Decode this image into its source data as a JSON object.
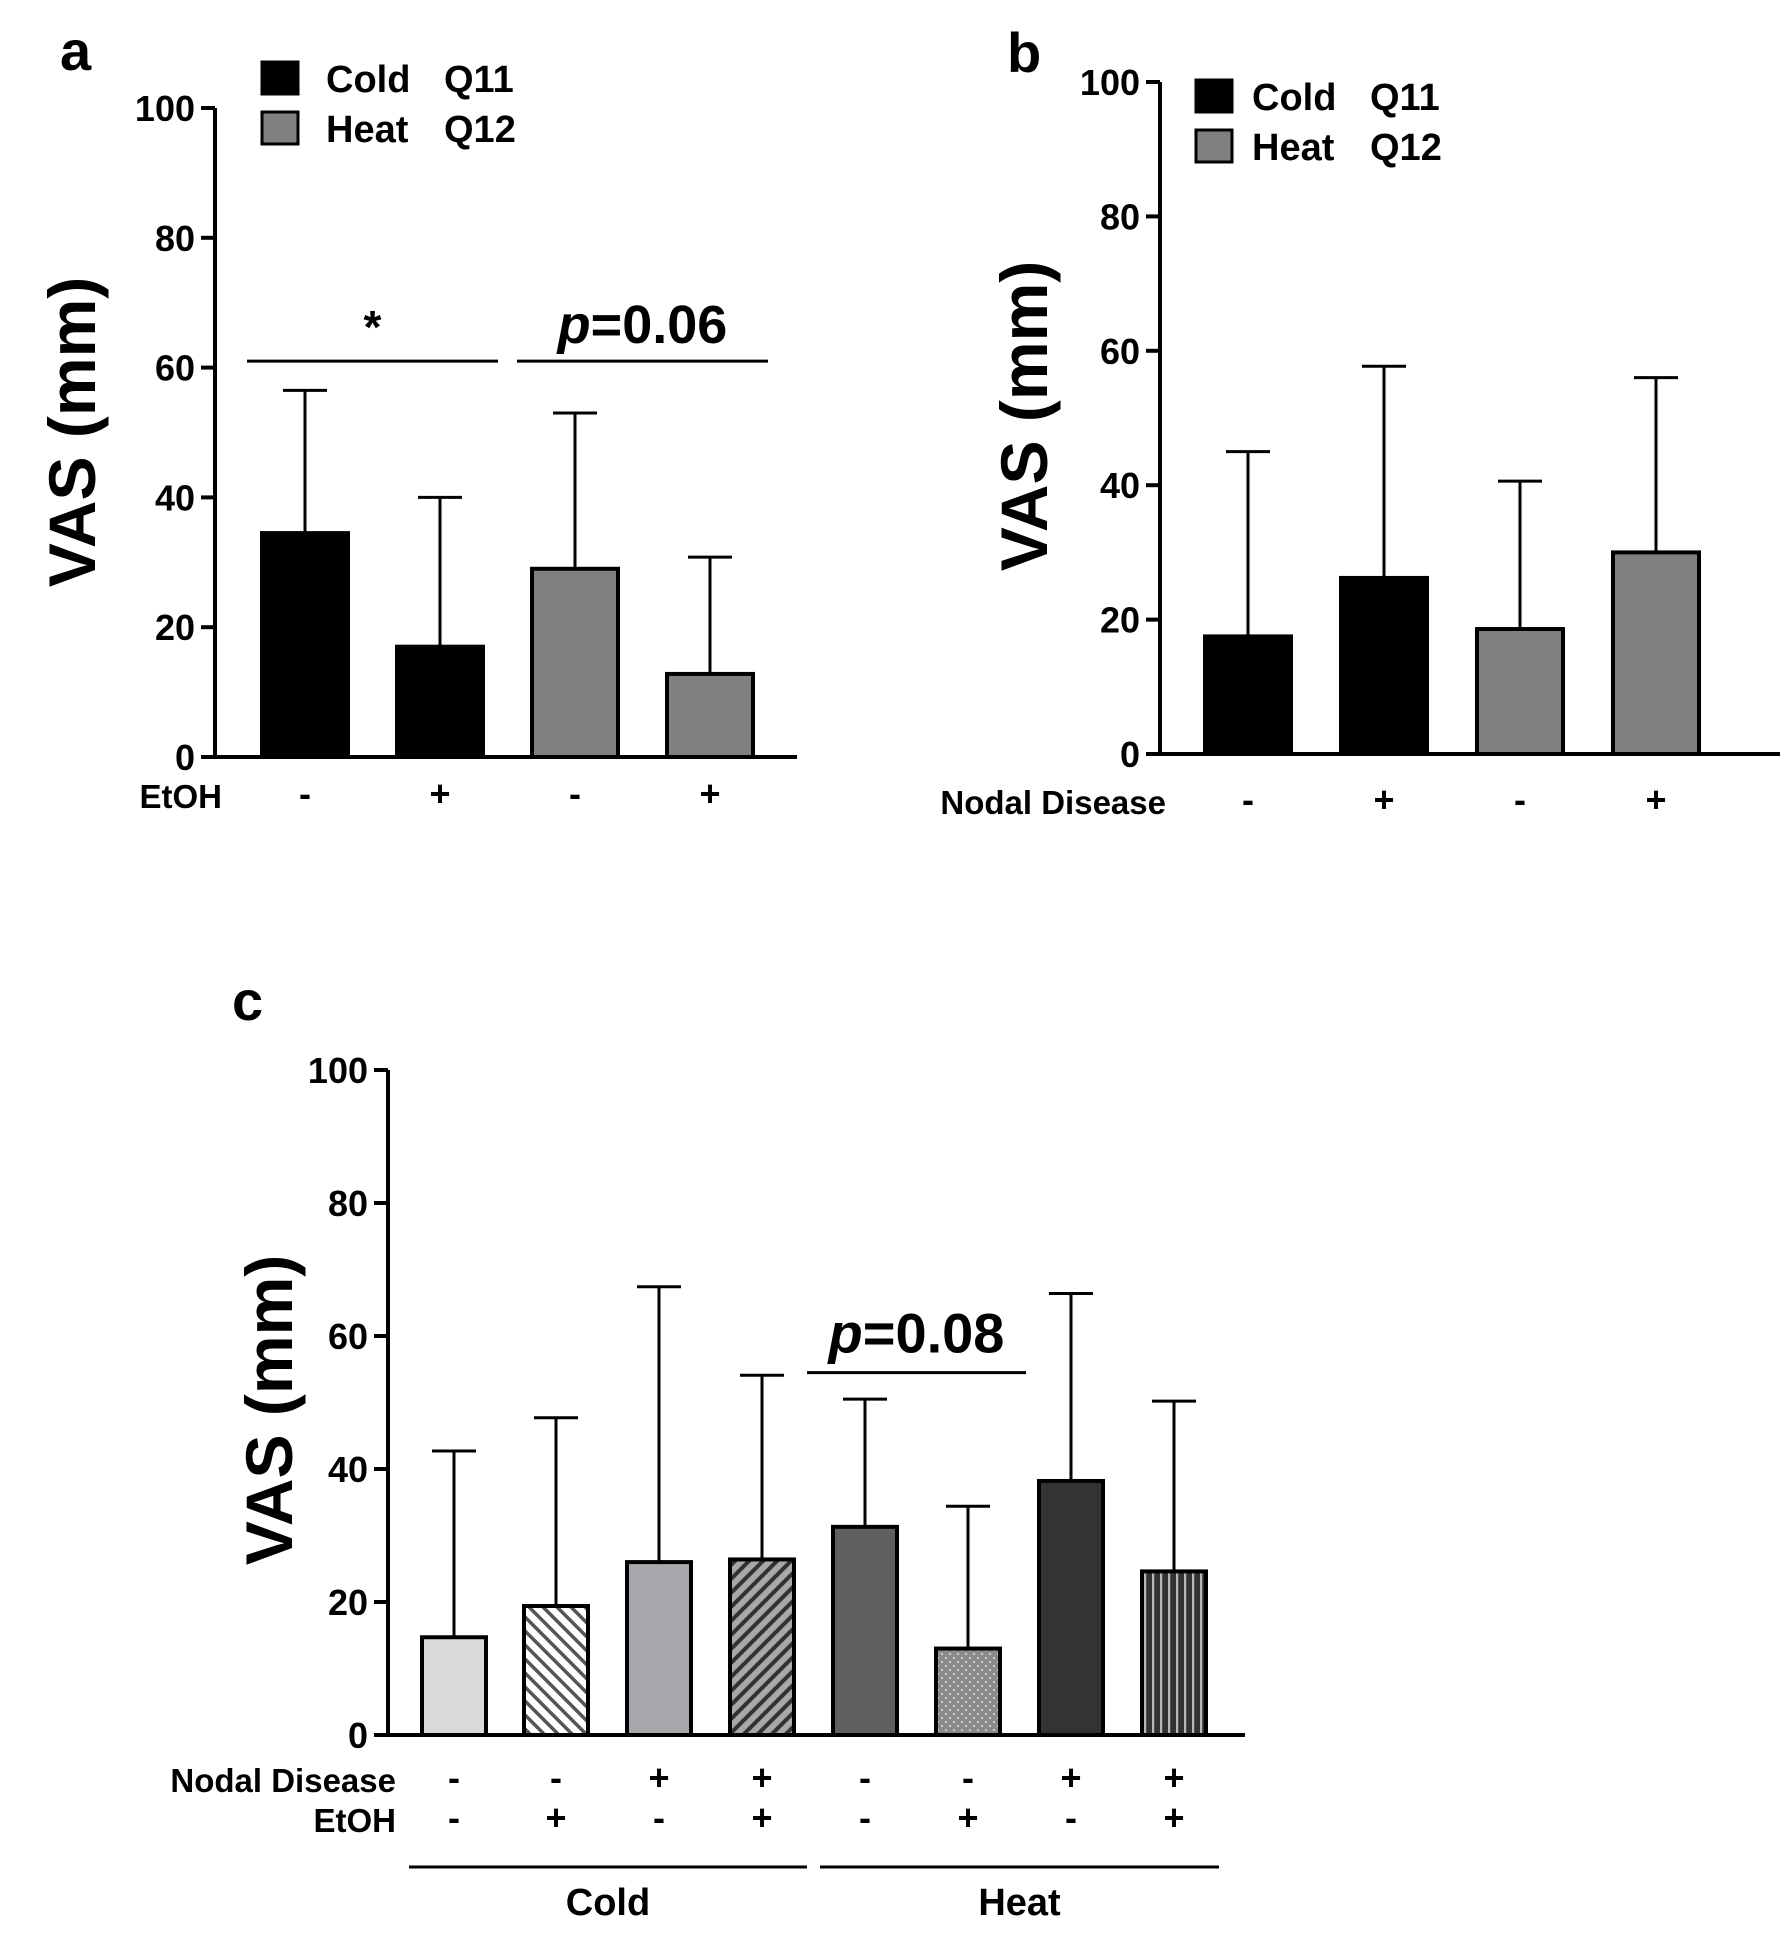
{
  "chart_data": [
    {
      "panel_label": "a",
      "type": "bar",
      "ylabel": "VAS (mm)",
      "ylim": [
        0,
        100
      ],
      "yticks": [
        "0",
        "20",
        "40",
        "60",
        "80",
        "100"
      ],
      "row_labels": [
        "EtOH"
      ],
      "legend": [
        {
          "label": "Cold",
          "code": "Q11",
          "color": "#000000"
        },
        {
          "label": "Heat",
          "code": "Q12",
          "color": "#808080"
        }
      ],
      "bars": [
        {
          "group": "Cold",
          "marks": [
            "-"
          ],
          "value": 34.5,
          "error": 22,
          "color": "#000000",
          "pattern": "solid"
        },
        {
          "group": "Cold",
          "marks": [
            "+"
          ],
          "value": 17,
          "error": 23,
          "color": "#000000",
          "pattern": "solid"
        },
        {
          "group": "Heat",
          "marks": [
            "-"
          ],
          "value": 29,
          "error": 24,
          "color": "#808080",
          "pattern": "solid"
        },
        {
          "group": "Heat",
          "marks": [
            "+"
          ],
          "value": 12.8,
          "error": 18,
          "color": "#808080",
          "pattern": "solid"
        }
      ],
      "annotations": [
        {
          "text": "*",
          "from_bar": 0,
          "to_bar": 1,
          "y": 61
        },
        {
          "text": "p=0.06",
          "from_bar": 2,
          "to_bar": 3,
          "y": 61
        }
      ],
      "group_labels": []
    },
    {
      "panel_label": "b",
      "type": "bar",
      "ylabel": "VAS (mm)",
      "ylim": [
        0,
        100
      ],
      "yticks": [
        "0",
        "20",
        "40",
        "60",
        "80",
        "100"
      ],
      "row_labels": [
        "Nodal Disease"
      ],
      "legend": [
        {
          "label": "Cold",
          "code": "Q11",
          "color": "#000000"
        },
        {
          "label": "Heat",
          "code": "Q12",
          "color": "#808080"
        }
      ],
      "bars": [
        {
          "group": "Cold",
          "marks": [
            "-"
          ],
          "value": 17.5,
          "error": 27.5,
          "color": "#000000",
          "pattern": "solid"
        },
        {
          "group": "Cold",
          "marks": [
            "+"
          ],
          "value": 26.2,
          "error": 31.5,
          "color": "#000000",
          "pattern": "solid"
        },
        {
          "group": "Heat",
          "marks": [
            "-"
          ],
          "value": 18.6,
          "error": 22,
          "color": "#808080",
          "pattern": "solid"
        },
        {
          "group": "Heat",
          "marks": [
            "+"
          ],
          "value": 30,
          "error": 26,
          "color": "#808080",
          "pattern": "solid"
        }
      ],
      "annotations": [],
      "group_labels": []
    },
    {
      "panel_label": "c",
      "type": "bar",
      "ylabel": "VAS (mm)",
      "ylim": [
        0,
        100
      ],
      "yticks": [
        "0",
        "20",
        "40",
        "60",
        "80",
        "100"
      ],
      "row_labels": [
        "Nodal Disease",
        "EtOH"
      ],
      "legend": [],
      "bars": [
        {
          "group": "Cold",
          "marks": [
            "-",
            "-"
          ],
          "value": 14.7,
          "error": 28,
          "color": "#d9d9d9",
          "pattern": "solid"
        },
        {
          "group": "Cold",
          "marks": [
            "-",
            "+"
          ],
          "value": 19.4,
          "error": 28.3,
          "color": "#ffffff",
          "pattern": "diag-back"
        },
        {
          "group": "Cold",
          "marks": [
            "+",
            "-"
          ],
          "value": 26,
          "error": 41.4,
          "color": "#a8a8ac",
          "pattern": "solid"
        },
        {
          "group": "Cold",
          "marks": [
            "+",
            "+"
          ],
          "value": 26.4,
          "error": 27.7,
          "color": "#a8a8a8",
          "pattern": "diag-fwd"
        },
        {
          "group": "Heat",
          "marks": [
            "-",
            "-"
          ],
          "value": 31.3,
          "error": 19.2,
          "color": "#606060",
          "pattern": "solid"
        },
        {
          "group": "Heat",
          "marks": [
            "-",
            "+"
          ],
          "value": 13,
          "error": 21.4,
          "color": "#8c8c8c",
          "pattern": "dots"
        },
        {
          "group": "Heat",
          "marks": [
            "+",
            "-"
          ],
          "value": 38.2,
          "error": 28.2,
          "color": "#333333",
          "pattern": "solid"
        },
        {
          "group": "Heat",
          "marks": [
            "+",
            "+"
          ],
          "value": 24.6,
          "error": 25.6,
          "color": "#404040",
          "pattern": "vertical"
        }
      ],
      "annotations": [
        {
          "text": "p=0.08",
          "from_bar": 4,
          "to_bar": 5,
          "y": 54.5
        }
      ],
      "group_labels": [
        {
          "label": "Cold",
          "from_bar": 0,
          "to_bar": 3
        },
        {
          "label": "Heat",
          "from_bar": 4,
          "to_bar": 7
        }
      ]
    }
  ]
}
